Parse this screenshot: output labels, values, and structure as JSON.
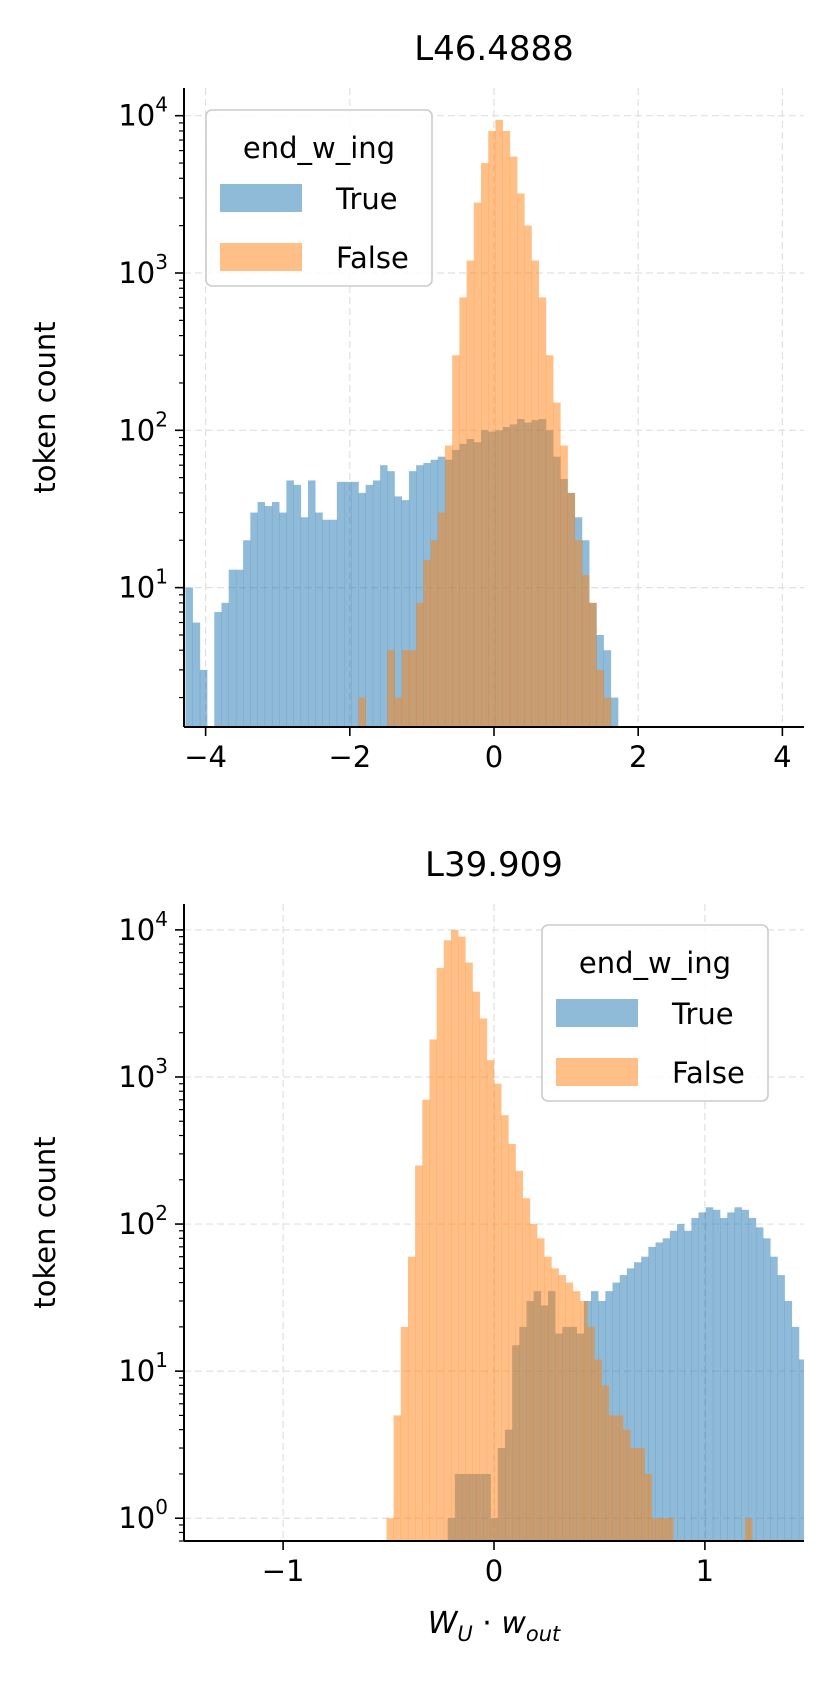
{
  "chart_data": [
    {
      "type": "histogram",
      "title": "L46.4888",
      "xlabel": "",
      "ylabel": "token count",
      "xlim": [
        -4.3,
        4.3
      ],
      "ylim": [
        1.3,
        15000
      ],
      "yscale": "log",
      "xticks": [
        -4,
        -2,
        0,
        2,
        4
      ],
      "xtick_labels": [
        "−4",
        "−2",
        "0",
        "2",
        "4"
      ],
      "yticks": [
        10,
        100,
        1000,
        10000
      ],
      "ytick_labels": [
        {
          "base": "10",
          "exp": "1"
        },
        {
          "base": "10",
          "exp": "2"
        },
        {
          "base": "10",
          "exp": "3"
        },
        {
          "base": "10",
          "exp": "4"
        }
      ],
      "grid": true,
      "legend": {
        "title": "end_w_ing",
        "placement": "top-left",
        "entries": [
          "True",
          "False"
        ]
      },
      "series": [
        {
          "name": "True",
          "color": "#1f77b4",
          "opacity": 0.5,
          "bin_start": -4.28,
          "bin_width": 0.1,
          "counts": [
            10,
            6,
            3,
            0,
            7,
            8,
            13,
            13,
            20,
            30,
            35,
            33,
            35,
            30,
            48,
            45,
            28,
            48,
            30,
            27,
            27,
            47,
            47,
            47,
            40,
            45,
            48,
            60,
            55,
            38,
            36,
            55,
            60,
            62,
            65,
            68,
            65,
            75,
            82,
            88,
            84,
            100,
            98,
            100,
            105,
            109,
            118,
            112,
            116,
            118,
            100,
            68,
            49,
            40,
            28,
            20,
            8,
            5,
            4,
            2
          ]
        },
        {
          "name": "False",
          "color": "#ff7f0e",
          "opacity": 0.5,
          "bin_start": -2.78,
          "bin_width": 0.1,
          "counts": [
            0,
            0,
            0,
            0,
            0,
            0,
            0,
            0,
            0,
            2,
            0,
            0,
            0,
            4,
            2,
            4,
            4,
            8,
            15,
            20,
            30,
            80,
            300,
            700,
            1200,
            2800,
            5000,
            8000,
            9400,
            8000,
            5500,
            3200,
            2000,
            1200,
            700,
            300,
            150,
            80,
            40,
            20,
            12,
            8,
            3,
            2
          ]
        }
      ]
    },
    {
      "type": "histogram",
      "title": "L39.909",
      "xlabel": {
        "base": "W",
        "base_sub": "U",
        "dot": " · ",
        "vec": "w",
        "vec_sub": "out"
      },
      "ylabel": "token count",
      "xlim": [
        -1.47,
        1.47
      ],
      "ylim": [
        0.7,
        15000
      ],
      "yscale": "log",
      "xticks": [
        -1,
        0,
        1
      ],
      "xtick_labels": [
        "−1",
        "0",
        "1"
      ],
      "yticks": [
        1,
        10,
        100,
        1000,
        10000
      ],
      "ytick_labels": [
        {
          "base": "10",
          "exp": "0"
        },
        {
          "base": "10",
          "exp": "1"
        },
        {
          "base": "10",
          "exp": "2"
        },
        {
          "base": "10",
          "exp": "3"
        },
        {
          "base": "10",
          "exp": "4"
        }
      ],
      "grid": true,
      "legend": {
        "title": "end_w_ing",
        "placement": "top-right",
        "entries": [
          "True",
          "False"
        ]
      },
      "series": [
        {
          "name": "True",
          "color": "#1f77b4",
          "opacity": 0.5,
          "bin_start": -0.22,
          "bin_width": 0.034,
          "counts": [
            1,
            2,
            2,
            2,
            2,
            2,
            1,
            3,
            4,
            15,
            20,
            30,
            35,
            28,
            35,
            18,
            20,
            20,
            18,
            30,
            35,
            30,
            35,
            40,
            45,
            50,
            55,
            60,
            70,
            75,
            80,
            90,
            100,
            90,
            110,
            120,
            130,
            125,
            110,
            120,
            130,
            125,
            110,
            95,
            80,
            60,
            45,
            30,
            20,
            12,
            7
          ]
        },
        {
          "name": "False",
          "color": "#ff7f0e",
          "opacity": 0.5,
          "bin_start": -0.51,
          "bin_width": 0.034,
          "counts": [
            1,
            5,
            20,
            60,
            250,
            700,
            1800,
            5500,
            8500,
            10000,
            9000,
            6000,
            3800,
            2500,
            1300,
            900,
            550,
            350,
            230,
            150,
            100,
            80,
            60,
            50,
            45,
            40,
            35,
            30,
            20,
            12,
            8,
            5,
            5,
            4,
            3,
            3,
            2,
            1,
            1,
            1,
            0,
            0,
            0,
            0,
            0,
            0,
            0,
            0,
            0,
            0,
            1
          ]
        }
      ]
    }
  ]
}
